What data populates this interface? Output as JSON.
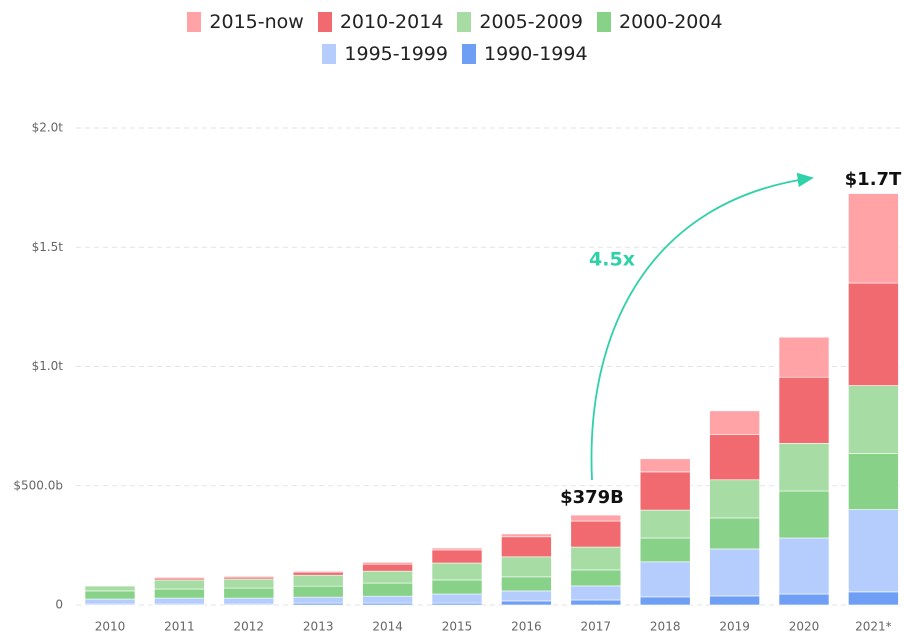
{
  "chart_data": {
    "type": "stacked-bar",
    "categories": [
      "2010",
      "2011",
      "2012",
      "2013",
      "2014",
      "2015",
      "2016",
      "2017",
      "2018",
      "2019",
      "2020",
      "2021*"
    ],
    "series": [
      {
        "name": "1990-1994",
        "color": "#6f9ff5",
        "values": [
          4,
          4,
          4,
          8,
          8,
          8,
          17,
          21,
          34,
          38,
          46,
          55
        ]
      },
      {
        "name": "1995-1999",
        "color": "#b4cdfc",
        "values": [
          21,
          25,
          25,
          25,
          29,
          38,
          42,
          59,
          147,
          197,
          235,
          345
        ]
      },
      {
        "name": "2000-2004",
        "color": "#88d188",
        "values": [
          34,
          38,
          42,
          46,
          55,
          59,
          59,
          67,
          100,
          130,
          197,
          235
        ]
      },
      {
        "name": "2005-2009",
        "color": "#a8dca5",
        "values": [
          21,
          38,
          38,
          46,
          50,
          71,
          84,
          96,
          117,
          160,
          200,
          285
        ]
      },
      {
        "name": "2010-2014",
        "color": "#f06a6f",
        "values": [
          2,
          8,
          8,
          13,
          29,
          55,
          84,
          109,
          160,
          189,
          277,
          430
        ]
      },
      {
        "name": "2015-now",
        "color": "#ffa3a7",
        "values": [
          2,
          4,
          4,
          4,
          8,
          8,
          12,
          25,
          55,
          100,
          168,
          375
        ]
      }
    ],
    "legend_order": [
      5,
      4,
      3,
      2,
      1,
      0
    ],
    "ylim": [
      0,
      2000
    ],
    "yticks": [
      0,
      {
        "value": 500,
        "label": "$500.0b"
      },
      {
        "value": 1000,
        "label": "$1.0t"
      },
      {
        "value": 1500,
        "label": "$1.5t"
      },
      {
        "value": 2000,
        "label": "$2.0t"
      }
    ],
    "grid": true,
    "annotations": [
      "$379B",
      "$1.7T",
      "4.5x"
    ]
  }
}
